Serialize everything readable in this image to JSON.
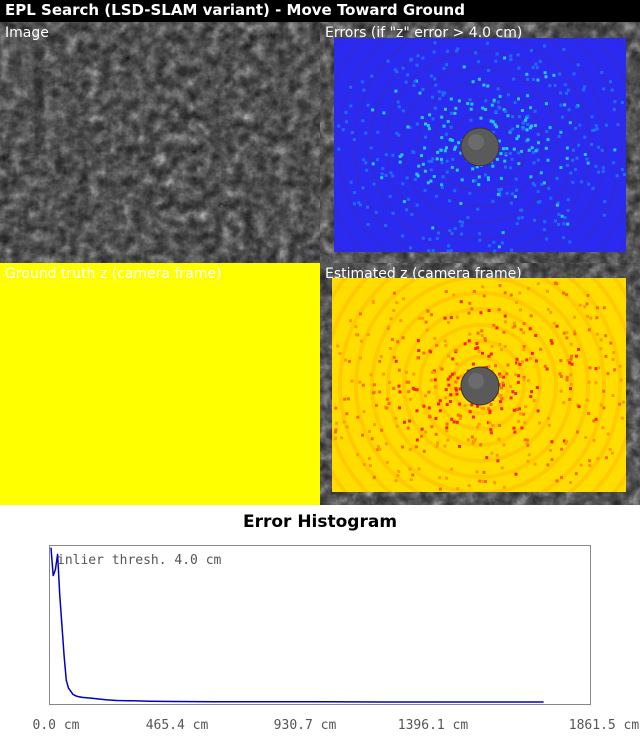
{
  "window": {
    "title": "EPL Search (LSD-SLAM variant) - Move Toward Ground"
  },
  "panels": {
    "image": {
      "label": "Image"
    },
    "errors": {
      "label": "Errors (if \"z\" error > 4.0 cm)"
    },
    "ground_truth": {
      "label": "Ground truth z (camera frame)"
    },
    "estimated": {
      "label": "Estimated z (camera frame)"
    }
  },
  "colors": {
    "title_bar": "#000000",
    "error_base": "#2a2af0",
    "error_highlight": "#22c8ff",
    "ground_truth_fill": "#ffff00",
    "estimate_base": "#ffdd00",
    "estimate_high": "#ff2200",
    "histogram_line": "#0000c8"
  },
  "histogram": {
    "title": "Error Histogram",
    "threshold_label": "inlier thresh. 4.0 cm"
  },
  "chart_data": {
    "type": "line",
    "title": "Error Histogram",
    "xlabel": "",
    "ylabel": "",
    "x_unit": "cm",
    "xlim": [
      0.0,
      1861.5
    ],
    "x_tick_labels": [
      "0.0 cm",
      "465.4 cm",
      "930.7 cm",
      "1396.1 cm",
      "1861.5 cm"
    ],
    "x_ticks": [
      0.0,
      465.4,
      930.7,
      1396.1,
      1861.5
    ],
    "ylim": [
      0,
      1
    ],
    "grid": false,
    "series": [
      {
        "x": [
          0,
          8,
          16,
          24,
          32,
          40,
          48,
          56,
          64,
          72,
          80,
          90,
          100,
          115,
          130,
          150,
          170,
          200,
          240,
          300,
          360,
          450,
          600,
          800,
          1000,
          1200,
          1400,
          1600,
          1800
        ],
        "values": [
          1.0,
          0.82,
          0.86,
          0.96,
          0.7,
          0.5,
          0.3,
          0.14,
          0.09,
          0.07,
          0.05,
          0.04,
          0.035,
          0.03,
          0.028,
          0.025,
          0.02,
          0.015,
          0.01,
          0.008,
          0.005,
          0.003,
          0.002,
          0.001,
          0.001,
          0.0,
          0.0,
          0.0,
          0.0
        ]
      }
    ]
  }
}
